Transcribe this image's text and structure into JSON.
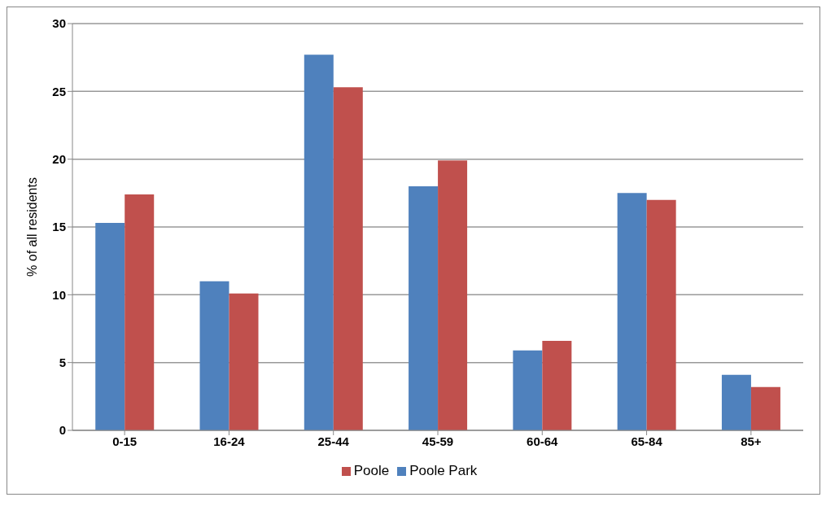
{
  "chart_data": {
    "type": "bar",
    "ylabel": "% of all residents",
    "categories": [
      "0-15",
      "16-24",
      "25-44",
      "45-59",
      "60-64",
      "65-84",
      "85+"
    ],
    "series": [
      {
        "name": "Poole Park",
        "color": "#4f81bd",
        "values": [
          15.3,
          11.0,
          27.7,
          18.0,
          5.9,
          17.5,
          4.1
        ]
      },
      {
        "name": "Poole",
        "color": "#c0504d",
        "values": [
          17.4,
          10.1,
          25.3,
          19.9,
          6.6,
          17.0,
          3.2
        ]
      }
    ],
    "ylim": [
      0,
      30
    ],
    "yticks": [
      0,
      5,
      10,
      15,
      20,
      25,
      30
    ],
    "grid": "y",
    "legend": "bottom"
  }
}
